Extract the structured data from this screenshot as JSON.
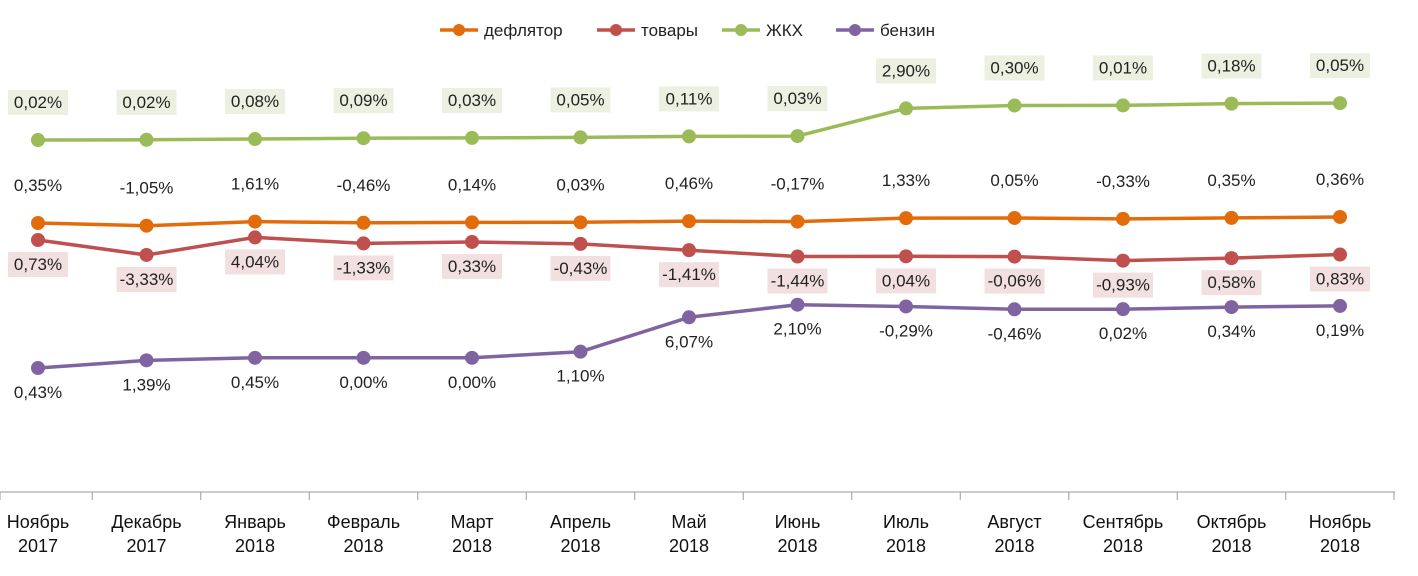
{
  "chart_data": {
    "type": "line",
    "title": "",
    "xlabel": "",
    "ylabel": "",
    "categories": [
      {
        "month": "Ноябрь",
        "year": "2017"
      },
      {
        "month": "Декабрь",
        "year": "2017"
      },
      {
        "month": "Январь",
        "year": "2018"
      },
      {
        "month": "Февраль",
        "year": "2018"
      },
      {
        "month": "Март",
        "year": "2018"
      },
      {
        "month": "Апрель",
        "year": "2018"
      },
      {
        "month": "Май",
        "year": "2018"
      },
      {
        "month": "Июнь",
        "year": "2018"
      },
      {
        "month": "Июль",
        "year": "2018"
      },
      {
        "month": "Август",
        "year": "2018"
      },
      {
        "month": "Сентябрь",
        "year": "2018"
      },
      {
        "month": "Октябрь",
        "year": "2018"
      },
      {
        "month": "Ноябрь",
        "year": "2018"
      }
    ],
    "legend_position": "top-center",
    "grid": false,
    "series": [
      {
        "name": "дефлятор",
        "color": "#E36C0A",
        "label_position": "above",
        "label_box": false,
        "values": [
          0.35,
          -1.05,
          1.61,
          -0.46,
          0.14,
          0.03,
          0.46,
          -0.17,
          1.33,
          0.05,
          -0.33,
          0.35,
          0.36
        ],
        "labels": [
          "0,35%",
          "-1,05%",
          "1,61%",
          "-0,46%",
          "0,14%",
          "0,03%",
          "0,46%",
          "-0,17%",
          "1,33%",
          "0,05%",
          "-0,33%",
          "0,35%",
          "0,36%"
        ]
      },
      {
        "name": "товары",
        "color": "#C0504D",
        "label_position": "below",
        "label_box": true,
        "label_box_color": "#F2E0E0",
        "values": [
          0.73,
          -3.33,
          4.04,
          -1.33,
          0.33,
          -0.43,
          -1.41,
          -1.44,
          0.04,
          -0.06,
          -0.93,
          0.58,
          0.83
        ],
        "labels": [
          "0,73%",
          "-3,33%",
          "4,04%",
          "-1,33%",
          "0,33%",
          "-0,43%",
          "-1,41%",
          "-1,44%",
          "0,04%",
          "-0,06%",
          "-0,93%",
          "0,58%",
          "0,83%"
        ]
      },
      {
        "name": "ЖКХ",
        "color": "#9BBB59",
        "label_position": "above",
        "label_box": true,
        "label_box_color": "#EBF0E1",
        "values": [
          0.02,
          0.02,
          0.08,
          0.09,
          0.03,
          0.05,
          0.11,
          0.03,
          2.9,
          0.3,
          0.01,
          0.18,
          0.05
        ],
        "labels": [
          "0,02%",
          "0,02%",
          "0,08%",
          "0,09%",
          "0,03%",
          "0,05%",
          "0,11%",
          "0,03%",
          "2,90%",
          "0,30%",
          "0,01%",
          "0,18%",
          "0,05%"
        ]
      },
      {
        "name": "бензин",
        "color": "#8064A2",
        "label_position": "below",
        "label_box": false,
        "values": [
          0.43,
          1.39,
          0.45,
          0.0,
          0.0,
          1.1,
          6.07,
          2.1,
          -0.29,
          -0.46,
          0.02,
          0.34,
          0.19
        ],
        "labels": [
          "0,43%",
          "1,39%",
          "0,45%",
          "0,00%",
          "0,00%",
          "1,10%",
          "6,07%",
          "2,10%",
          "-0,29%",
          "-0,46%",
          "0,02%",
          "0,34%",
          "0,19%"
        ]
      }
    ]
  }
}
